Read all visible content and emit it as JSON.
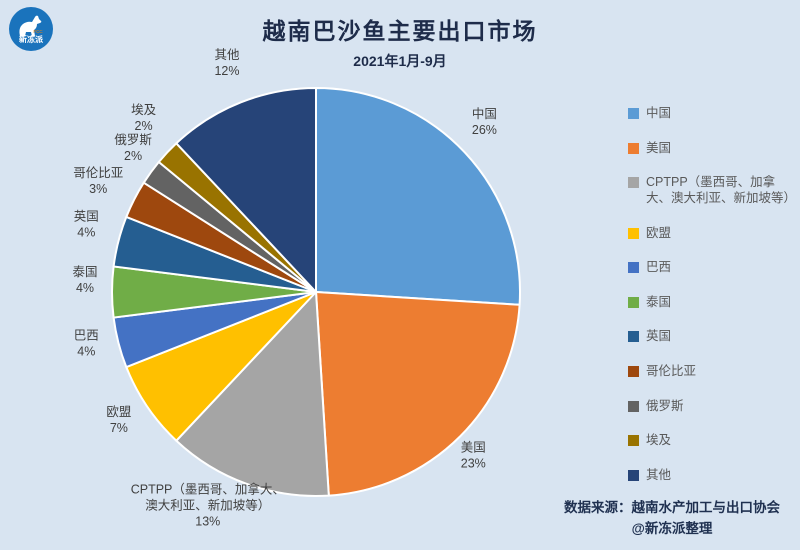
{
  "page": {
    "background": "#D8E4F1"
  },
  "logo": {
    "brand": "新冻派",
    "sub": "FCC",
    "circle_color": "#1A73BC",
    "sub_color": "#F08300"
  },
  "header": {
    "title": "越南巴沙鱼主要出口市场",
    "subtitle": "2021年1月-9月"
  },
  "chart_data": {
    "type": "pie",
    "title": "越南巴沙鱼主要出口市场",
    "subtitle": "2021年1月-9月",
    "unit": "%",
    "start_angle_deg": 0,
    "direction": "clockwise",
    "legend_position": "right",
    "slices": [
      {
        "name": "中国",
        "value": 26,
        "pct_label": "26%",
        "color": "#5B9BD5",
        "label_lines": [
          "中国",
          "26%"
        ]
      },
      {
        "name": "美国",
        "value": 23,
        "pct_label": "23%",
        "color": "#ED7D31",
        "label_lines": [
          "美国",
          "23%"
        ]
      },
      {
        "name": "CPTPP（墨西哥、加拿大、澳大利亚、新加坡等）",
        "value": 13,
        "pct_label": "13%",
        "color": "#A5A5A5",
        "label_lines": [
          "CPTPP（墨西哥、加拿大、",
          "澳大利亚、新加坡等）",
          "13%"
        ]
      },
      {
        "name": "欧盟",
        "value": 7,
        "pct_label": "7%",
        "color": "#FFC000",
        "label_lines": [
          "欧盟",
          "7%"
        ]
      },
      {
        "name": "巴西",
        "value": 4,
        "pct_label": "4%",
        "color": "#4472C4",
        "label_lines": [
          "巴西",
          "4%"
        ]
      },
      {
        "name": "泰国",
        "value": 4,
        "pct_label": "4%",
        "color": "#70AD47",
        "label_lines": [
          "泰国",
          "4%"
        ]
      },
      {
        "name": "英国",
        "value": 4,
        "pct_label": "4%",
        "color": "#255E91",
        "label_lines": [
          "英国",
          "4%"
        ]
      },
      {
        "name": "哥伦比亚",
        "value": 3,
        "pct_label": "3%",
        "color": "#9E480E",
        "label_lines": [
          "哥伦比亚",
          "3%"
        ]
      },
      {
        "name": "俄罗斯",
        "value": 2,
        "pct_label": "2%",
        "color": "#636363",
        "label_lines": [
          "俄罗斯",
          "2%"
        ]
      },
      {
        "name": "埃及",
        "value": 2,
        "pct_label": "2%",
        "color": "#997300",
        "label_lines": [
          "埃及",
          "2%"
        ]
      },
      {
        "name": "其他",
        "value": 12,
        "pct_label": "12%",
        "color": "#264478",
        "label_lines": [
          "其他",
          "12%"
        ]
      }
    ]
  },
  "source": {
    "line1": "数据来源：越南水产加工与出口协会",
    "line2": "@新冻派整理"
  }
}
